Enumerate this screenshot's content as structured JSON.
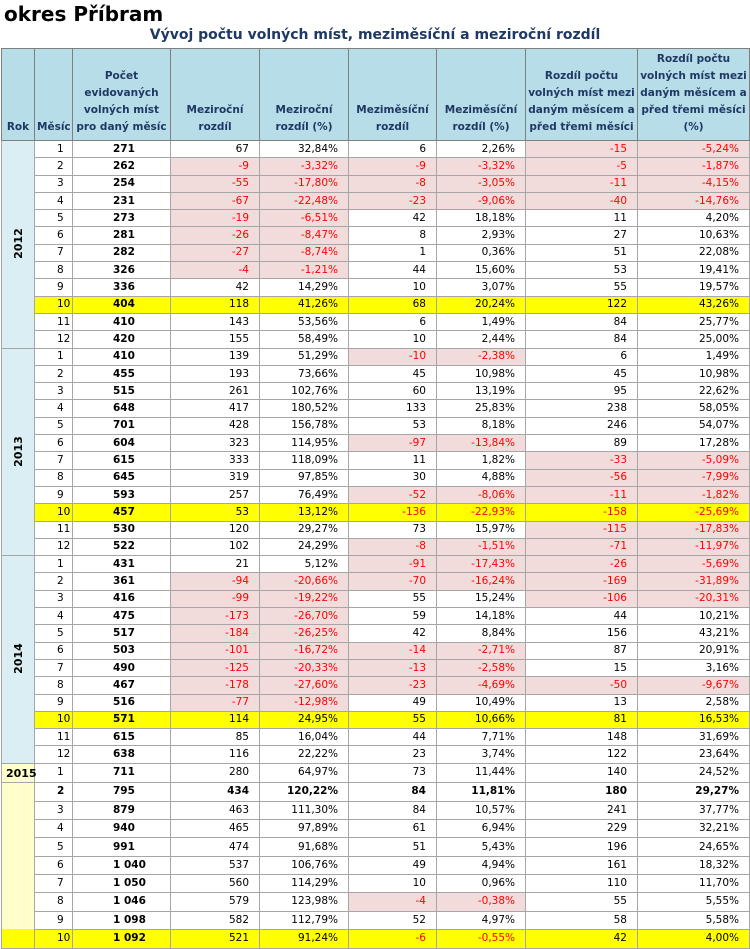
{
  "title": "okres Příbram",
  "subtitle": "Vývoj počtu volných míst, meziměsíční a meziroční rozdíl",
  "headers": [
    "Rok",
    "Měsíc",
    "Počet evidovaných volných míst pro daný měsíc",
    "Meziroční rozdíl",
    "Meziroční rozdíl (%)",
    "Meziměsíční rozdíl",
    "Meziměsíční rozdíl (%)",
    "Rozdíl počtu volných míst mezi daným měsícem a před třemi měsíci",
    "Rozdíl počtu volných míst mezi daným měsícem a před třemi měsíci (%)"
  ],
  "years": [
    {
      "year": "2012",
      "rows": [
        {
          "m": "1",
          "c": "271",
          "yd": "67",
          "yp": "32,84%",
          "md": "6",
          "mp": "2,26%",
          "td": "-15",
          "tp": "-5,24%"
        },
        {
          "m": "2",
          "c": "262",
          "yd": "-9",
          "yp": "-3,32%",
          "md": "-9",
          "mp": "-3,32%",
          "td": "-5",
          "tp": "-1,87%"
        },
        {
          "m": "3",
          "c": "254",
          "yd": "-55",
          "yp": "-17,80%",
          "md": "-8",
          "mp": "-3,05%",
          "td": "-11",
          "tp": "-4,15%"
        },
        {
          "m": "4",
          "c": "231",
          "yd": "-67",
          "yp": "-22,48%",
          "md": "-23",
          "mp": "-9,06%",
          "td": "-40",
          "tp": "-14,76%"
        },
        {
          "m": "5",
          "c": "273",
          "yd": "-19",
          "yp": "-6,51%",
          "md": "42",
          "mp": "18,18%",
          "td": "11",
          "tp": "4,20%"
        },
        {
          "m": "6",
          "c": "281",
          "yd": "-26",
          "yp": "-8,47%",
          "md": "8",
          "mp": "2,93%",
          "td": "27",
          "tp": "10,63%"
        },
        {
          "m": "7",
          "c": "282",
          "yd": "-27",
          "yp": "-8,74%",
          "md": "1",
          "mp": "0,36%",
          "td": "51",
          "tp": "22,08%"
        },
        {
          "m": "8",
          "c": "326",
          "yd": "-4",
          "yp": "-1,21%",
          "md": "44",
          "mp": "15,60%",
          "td": "53",
          "tp": "19,41%"
        },
        {
          "m": "9",
          "c": "336",
          "yd": "42",
          "yp": "14,29%",
          "md": "10",
          "mp": "3,07%",
          "td": "55",
          "tp": "19,57%"
        },
        {
          "m": "10",
          "c": "404",
          "yd": "118",
          "yp": "41,26%",
          "md": "68",
          "mp": "20,24%",
          "td": "122",
          "tp": "43,26%",
          "hl": true
        },
        {
          "m": "11",
          "c": "410",
          "yd": "143",
          "yp": "53,56%",
          "md": "6",
          "mp": "1,49%",
          "td": "84",
          "tp": "25,77%"
        },
        {
          "m": "12",
          "c": "420",
          "yd": "155",
          "yp": "58,49%",
          "md": "10",
          "mp": "2,44%",
          "td": "84",
          "tp": "25,00%"
        }
      ]
    },
    {
      "year": "2013",
      "rows": [
        {
          "m": "1",
          "c": "410",
          "yd": "139",
          "yp": "51,29%",
          "md": "-10",
          "mp": "-2,38%",
          "td": "6",
          "tp": "1,49%"
        },
        {
          "m": "2",
          "c": "455",
          "yd": "193",
          "yp": "73,66%",
          "md": "45",
          "mp": "10,98%",
          "td": "45",
          "tp": "10,98%"
        },
        {
          "m": "3",
          "c": "515",
          "yd": "261",
          "yp": "102,76%",
          "md": "60",
          "mp": "13,19%",
          "td": "95",
          "tp": "22,62%"
        },
        {
          "m": "4",
          "c": "648",
          "yd": "417",
          "yp": "180,52%",
          "md": "133",
          "mp": "25,83%",
          "td": "238",
          "tp": "58,05%"
        },
        {
          "m": "5",
          "c": "701",
          "yd": "428",
          "yp": "156,78%",
          "md": "53",
          "mp": "8,18%",
          "td": "246",
          "tp": "54,07%"
        },
        {
          "m": "6",
          "c": "604",
          "yd": "323",
          "yp": "114,95%",
          "md": "-97",
          "mp": "-13,84%",
          "td": "89",
          "tp": "17,28%"
        },
        {
          "m": "7",
          "c": "615",
          "yd": "333",
          "yp": "118,09%",
          "md": "11",
          "mp": "1,82%",
          "td": "-33",
          "tp": "-5,09%"
        },
        {
          "m": "8",
          "c": "645",
          "yd": "319",
          "yp": "97,85%",
          "md": "30",
          "mp": "4,88%",
          "td": "-56",
          "tp": "-7,99%"
        },
        {
          "m": "9",
          "c": "593",
          "yd": "257",
          "yp": "76,49%",
          "md": "-52",
          "mp": "-8,06%",
          "td": "-11",
          "tp": "-1,82%"
        },
        {
          "m": "10",
          "c": "457",
          "yd": "53",
          "yp": "13,12%",
          "md": "-136",
          "mp": "-22,93%",
          "td": "-158",
          "tp": "-25,69%",
          "hl": true
        },
        {
          "m": "11",
          "c": "530",
          "yd": "120",
          "yp": "29,27%",
          "md": "73",
          "mp": "15,97%",
          "td": "-115",
          "tp": "-17,83%"
        },
        {
          "m": "12",
          "c": "522",
          "yd": "102",
          "yp": "24,29%",
          "md": "-8",
          "mp": "-1,51%",
          "td": "-71",
          "tp": "-11,97%"
        }
      ]
    },
    {
      "year": "2014",
      "rows": [
        {
          "m": "1",
          "c": "431",
          "yd": "21",
          "yp": "5,12%",
          "md": "-91",
          "mp": "-17,43%",
          "td": "-26",
          "tp": "-5,69%"
        },
        {
          "m": "2",
          "c": "361",
          "yd": "-94",
          "yp": "-20,66%",
          "md": "-70",
          "mp": "-16,24%",
          "td": "-169",
          "tp": "-31,89%"
        },
        {
          "m": "3",
          "c": "416",
          "yd": "-99",
          "yp": "-19,22%",
          "md": "55",
          "mp": "15,24%",
          "td": "-106",
          "tp": "-20,31%"
        },
        {
          "m": "4",
          "c": "475",
          "yd": "-173",
          "yp": "-26,70%",
          "md": "59",
          "mp": "14,18%",
          "td": "44",
          "tp": "10,21%"
        },
        {
          "m": "5",
          "c": "517",
          "yd": "-184",
          "yp": "-26,25%",
          "md": "42",
          "mp": "8,84%",
          "td": "156",
          "tp": "43,21%"
        },
        {
          "m": "6",
          "c": "503",
          "yd": "-101",
          "yp": "-16,72%",
          "md": "-14",
          "mp": "-2,71%",
          "td": "87",
          "tp": "20,91%"
        },
        {
          "m": "7",
          "c": "490",
          "yd": "-125",
          "yp": "-20,33%",
          "md": "-13",
          "mp": "-2,58%",
          "td": "15",
          "tp": "3,16%"
        },
        {
          "m": "8",
          "c": "467",
          "yd": "-178",
          "yp": "-27,60%",
          "md": "-23",
          "mp": "-4,69%",
          "td": "-50",
          "tp": "-9,67%"
        },
        {
          "m": "9",
          "c": "516",
          "yd": "-77",
          "yp": "-12,98%",
          "md": "49",
          "mp": "10,49%",
          "td": "13",
          "tp": "2,58%"
        },
        {
          "m": "10",
          "c": "571",
          "yd": "114",
          "yp": "24,95%",
          "md": "55",
          "mp": "10,66%",
          "td": "81",
          "tp": "16,53%",
          "hl": true
        },
        {
          "m": "11",
          "c": "615",
          "yd": "85",
          "yp": "16,04%",
          "md": "44",
          "mp": "7,71%",
          "td": "148",
          "tp": "31,69%"
        },
        {
          "m": "12",
          "c": "638",
          "yd": "116",
          "yp": "22,22%",
          "md": "23",
          "mp": "3,74%",
          "td": "122",
          "tp": "23,64%"
        }
      ]
    },
    {
      "year": "2015",
      "rows": [
        {
          "m": "1",
          "c": "711",
          "yd": "280",
          "yp": "64,97%",
          "md": "73",
          "mp": "11,44%",
          "td": "140",
          "tp": "24,52%"
        },
        {
          "m": "2",
          "c": "795",
          "yd": "434",
          "yp": "120,22%",
          "md": "84",
          "mp": "11,81%",
          "td": "180",
          "tp": "29,27%",
          "bold": true
        },
        {
          "m": "3",
          "c": "879",
          "yd": "463",
          "yp": "111,30%",
          "md": "84",
          "mp": "10,57%",
          "td": "241",
          "tp": "37,77%"
        },
        {
          "m": "4",
          "c": "940",
          "yd": "465",
          "yp": "97,89%",
          "md": "61",
          "mp": "6,94%",
          "td": "229",
          "tp": "32,21%"
        },
        {
          "m": "5",
          "c": "991",
          "yd": "474",
          "yp": "91,68%",
          "md": "51",
          "mp": "5,43%",
          "td": "196",
          "tp": "24,65%"
        },
        {
          "m": "6",
          "c": "1 040",
          "yd": "537",
          "yp": "106,76%",
          "md": "49",
          "mp": "4,94%",
          "td": "161",
          "tp": "18,32%"
        },
        {
          "m": "7",
          "c": "1 050",
          "yd": "560",
          "yp": "114,29%",
          "md": "10",
          "mp": "0,96%",
          "td": "110",
          "tp": "11,70%"
        },
        {
          "m": "8",
          "c": "1 046",
          "yd": "579",
          "yp": "123,98%",
          "md": "-4",
          "mp": "-0,38%",
          "td": "55",
          "tp": "5,55%"
        },
        {
          "m": "9",
          "c": "1 098",
          "yd": "582",
          "yp": "112,79%",
          "md": "52",
          "mp": "4,97%",
          "td": "58",
          "tp": "5,58%"
        },
        {
          "m": "10",
          "c": "1 092",
          "yd": "521",
          "yp": "91,24%",
          "md": "-6",
          "mp": "-0,55%",
          "td": "42",
          "tp": "4,00%",
          "hl": true
        }
      ]
    }
  ],
  "colors": {
    "header_bg": "#b7dde8",
    "highlight": "#ffff00",
    "negative_bg": "#f2dcdb",
    "negative_text": "#ff0000",
    "year_bg": "#daeef3",
    "year_2015_bg": "#ffffcc"
  }
}
